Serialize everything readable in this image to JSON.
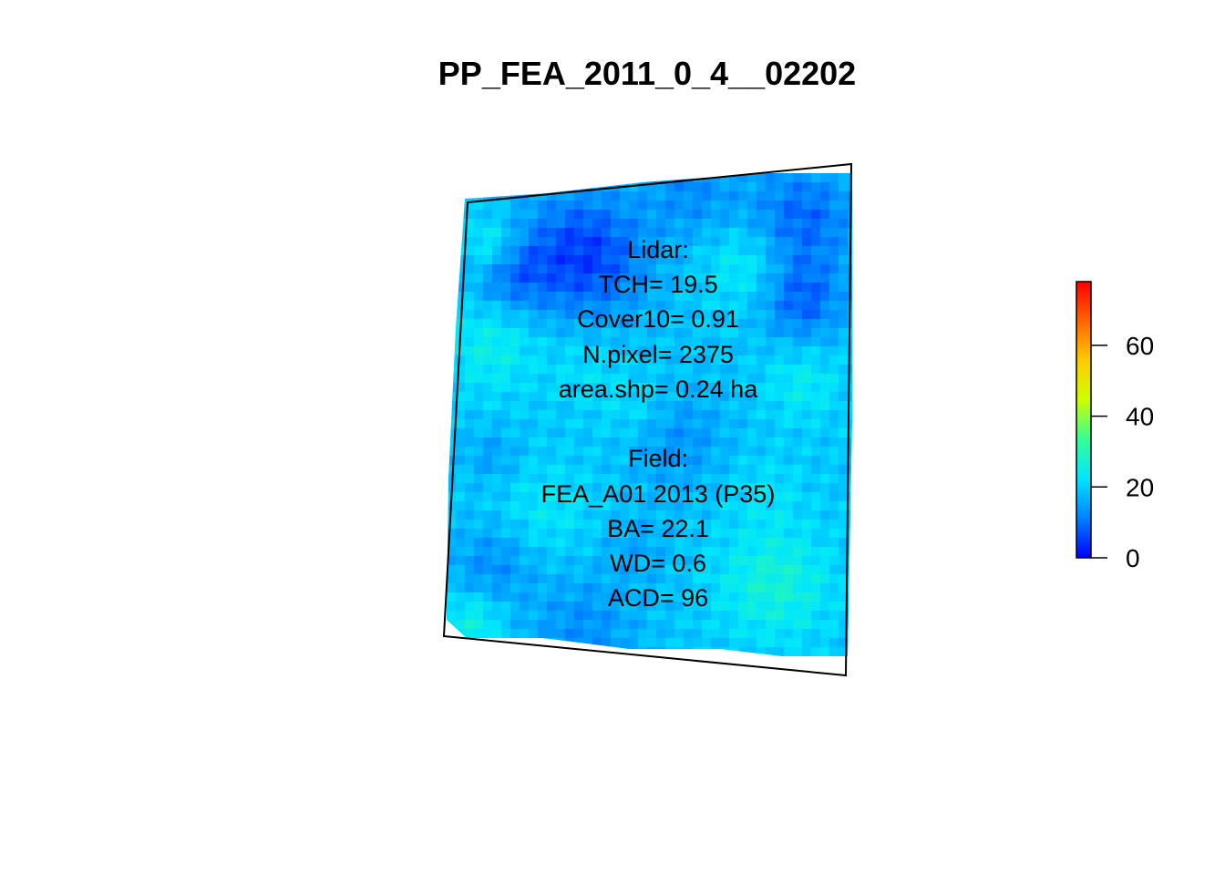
{
  "title": "PP_FEA_2011_0_4__02202",
  "annotation": {
    "lidar_header": "Lidar:",
    "tch": "TCH= 19.5",
    "cover10": "Cover10= 0.91",
    "npixel": "N.pixel= 2375",
    "area": "area.shp= 0.24 ha",
    "field_header": "Field:",
    "field_plot": "FEA_A01 2013 (P35)",
    "ba": "BA= 22.1",
    "wd": "WD= 0.6",
    "acd": "ACD= 96"
  },
  "legend": {
    "min": 0,
    "max": 78,
    "ticks": [
      {
        "value": 0,
        "label": "0"
      },
      {
        "value": 20,
        "label": "20"
      },
      {
        "value": 40,
        "label": "40"
      },
      {
        "value": 60,
        "label": "60"
      }
    ],
    "colors": [
      "#0000ff",
      "#0080ff",
      "#00e5ff",
      "#33ff99",
      "#ccff00",
      "#ffcc00",
      "#ff6600",
      "#ff0000"
    ]
  }
}
